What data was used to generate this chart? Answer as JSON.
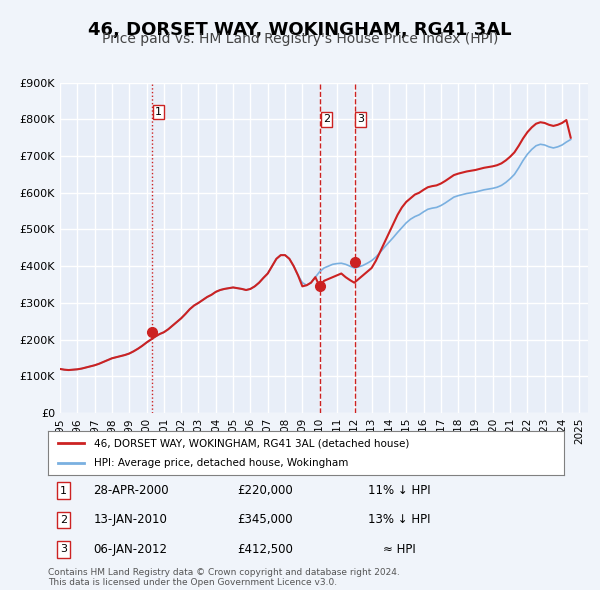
{
  "title": "46, DORSET WAY, WOKINGHAM, RG41 3AL",
  "subtitle": "Price paid vs. HM Land Registry's House Price Index (HPI)",
  "title_fontsize": 13,
  "subtitle_fontsize": 10,
  "bg_color": "#f0f4fa",
  "plot_bg_color": "#e8eef8",
  "grid_color": "#ffffff",
  "line_color_property": "#cc2222",
  "line_color_hpi": "#7ab0e0",
  "ylim": [
    0,
    900000
  ],
  "yticks": [
    0,
    100000,
    200000,
    300000,
    400000,
    500000,
    600000,
    700000,
    800000,
    900000
  ],
  "ytick_labels": [
    "£0",
    "£100K",
    "£200K",
    "£300K",
    "£400K",
    "£500K",
    "£600K",
    "£700K",
    "£800K",
    "£900K"
  ],
  "xlim_start": 1995.0,
  "xlim_end": 2025.5,
  "xtick_years": [
    1995,
    1996,
    1997,
    1998,
    1999,
    2000,
    2001,
    2002,
    2003,
    2004,
    2005,
    2006,
    2007,
    2008,
    2009,
    2010,
    2011,
    2012,
    2013,
    2014,
    2015,
    2016,
    2017,
    2018,
    2019,
    2020,
    2021,
    2022,
    2023,
    2024,
    2025
  ],
  "sale_dates": [
    2000.33,
    2010.04,
    2012.02
  ],
  "sale_prices": [
    220000,
    345000,
    412500
  ],
  "sale_labels": [
    "1",
    "2",
    "3"
  ],
  "vline_style_1": "dotted",
  "vline_style_23": "dashed",
  "legend_label_property": "46, DORSET WAY, WOKINGHAM, RG41 3AL (detached house)",
  "legend_label_hpi": "HPI: Average price, detached house, Wokingham",
  "table_rows": [
    {
      "num": "1",
      "date": "28-APR-2000",
      "price": "£220,000",
      "hpi": "11% ↓ HPI"
    },
    {
      "num": "2",
      "date": "13-JAN-2010",
      "price": "£345,000",
      "hpi": "13% ↓ HPI"
    },
    {
      "num": "3",
      "date": "06-JAN-2012",
      "price": "£412,500",
      "hpi": "≈ HPI"
    }
  ],
  "footnote": "Contains HM Land Registry data © Crown copyright and database right 2024.\nThis data is licensed under the Open Government Licence v3.0.",
  "hpi_data": {
    "years": [
      1995.0,
      1995.25,
      1995.5,
      1995.75,
      1996.0,
      1996.25,
      1996.5,
      1996.75,
      1997.0,
      1997.25,
      1997.5,
      1997.75,
      1998.0,
      1998.25,
      1998.5,
      1998.75,
      1999.0,
      1999.25,
      1999.5,
      1999.75,
      2000.0,
      2000.25,
      2000.5,
      2000.75,
      2001.0,
      2001.25,
      2001.5,
      2001.75,
      2002.0,
      2002.25,
      2002.5,
      2002.75,
      2003.0,
      2003.25,
      2003.5,
      2003.75,
      2004.0,
      2004.25,
      2004.5,
      2004.75,
      2005.0,
      2005.25,
      2005.5,
      2005.75,
      2006.0,
      2006.25,
      2006.5,
      2006.75,
      2007.0,
      2007.25,
      2007.5,
      2007.75,
      2008.0,
      2008.25,
      2008.5,
      2008.75,
      2009.0,
      2009.25,
      2009.5,
      2009.75,
      2010.0,
      2010.25,
      2010.5,
      2010.75,
      2011.0,
      2011.25,
      2011.5,
      2011.75,
      2012.0,
      2012.25,
      2012.5,
      2012.75,
      2013.0,
      2013.25,
      2013.5,
      2013.75,
      2014.0,
      2014.25,
      2014.5,
      2014.75,
      2015.0,
      2015.25,
      2015.5,
      2015.75,
      2016.0,
      2016.25,
      2016.5,
      2016.75,
      2017.0,
      2017.25,
      2017.5,
      2017.75,
      2018.0,
      2018.25,
      2018.5,
      2018.75,
      2019.0,
      2019.25,
      2019.5,
      2019.75,
      2020.0,
      2020.25,
      2020.5,
      2020.75,
      2021.0,
      2021.25,
      2021.5,
      2021.75,
      2022.0,
      2022.25,
      2022.5,
      2022.75,
      2023.0,
      2023.25,
      2023.5,
      2023.75,
      2024.0,
      2024.25,
      2024.5
    ],
    "values": [
      120000,
      118000,
      117000,
      118000,
      119000,
      121000,
      124000,
      127000,
      130000,
      134000,
      139000,
      144000,
      149000,
      152000,
      155000,
      158000,
      162000,
      168000,
      175000,
      183000,
      192000,
      200000,
      208000,
      215000,
      220000,
      228000,
      238000,
      248000,
      258000,
      270000,
      283000,
      293000,
      300000,
      308000,
      316000,
      322000,
      330000,
      335000,
      338000,
      340000,
      342000,
      340000,
      338000,
      335000,
      338000,
      345000,
      355000,
      368000,
      380000,
      400000,
      420000,
      430000,
      430000,
      420000,
      400000,
      375000,
      355000,
      348000,
      355000,
      370000,
      385000,
      395000,
      400000,
      405000,
      407000,
      408000,
      405000,
      400000,
      395000,
      398000,
      402000,
      408000,
      415000,
      425000,
      438000,
      452000,
      465000,
      478000,
      492000,
      505000,
      518000,
      528000,
      535000,
      540000,
      548000,
      555000,
      558000,
      560000,
      565000,
      572000,
      580000,
      588000,
      592000,
      595000,
      598000,
      600000,
      602000,
      605000,
      608000,
      610000,
      612000,
      615000,
      620000,
      628000,
      638000,
      650000,
      668000,
      688000,
      705000,
      718000,
      728000,
      732000,
      730000,
      725000,
      722000,
      725000,
      730000,
      738000,
      745000
    ],
    "prop_values": [
      120000,
      118000,
      117000,
      118000,
      119000,
      121000,
      124000,
      127000,
      130000,
      134000,
      139000,
      144000,
      149000,
      152000,
      155000,
      158000,
      162000,
      168000,
      175000,
      183000,
      192000,
      200000,
      208000,
      215000,
      220000,
      228000,
      238000,
      248000,
      258000,
      270000,
      283000,
      293000,
      300000,
      308000,
      316000,
      322000,
      330000,
      335000,
      338000,
      340000,
      342000,
      340000,
      338000,
      335000,
      338000,
      345000,
      355000,
      368000,
      380000,
      400000,
      420000,
      430000,
      430000,
      420000,
      400000,
      375000,
      345000,
      348000,
      355000,
      370000,
      345000,
      360000,
      365000,
      370000,
      375000,
      380000,
      370000,
      362000,
      355000,
      365000,
      375000,
      385000,
      395000,
      415000,
      440000,
      465000,
      490000,
      515000,
      540000,
      560000,
      575000,
      585000,
      595000,
      600000,
      608000,
      615000,
      618000,
      620000,
      625000,
      632000,
      640000,
      648000,
      652000,
      655000,
      658000,
      660000,
      662000,
      665000,
      668000,
      670000,
      672000,
      675000,
      680000,
      688000,
      698000,
      710000,
      728000,
      748000,
      765000,
      778000,
      788000,
      792000,
      790000,
      785000,
      782000,
      785000,
      790000,
      798000,
      750000
    ]
  }
}
